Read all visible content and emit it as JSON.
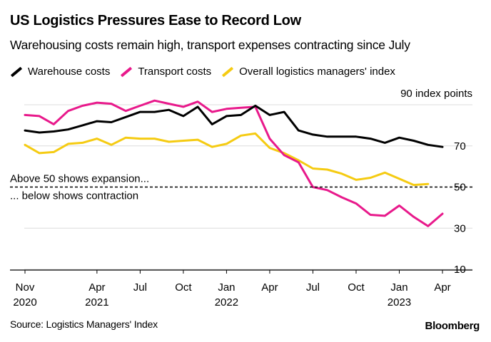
{
  "chart_data": {
    "type": "line",
    "title": "US Logistics Pressures Ease to Record Low",
    "subtitle": "Warehousing costs remain high, transport expenses contracting since July",
    "ylabel": "90 index points",
    "ylim": [
      10,
      90
    ],
    "yticks": [
      10,
      30,
      50,
      70,
      90
    ],
    "ytick_labels": [
      "10",
      "30",
      "50",
      "70"
    ],
    "threshold": 50,
    "annotations": {
      "above": "Above 50 shows expansion...",
      "below": "... below shows contraction"
    },
    "x_month_index": [
      0,
      1,
      2,
      3,
      4,
      5,
      6,
      7,
      8,
      9,
      10,
      11,
      12,
      13,
      14,
      15,
      16,
      17,
      18,
      19,
      20,
      21,
      22,
      23,
      24,
      25,
      26,
      27,
      28,
      29
    ],
    "xticks": [
      {
        "i": 0,
        "month": "Nov",
        "year": "2020"
      },
      {
        "i": 5,
        "month": "Apr",
        "year": "2021"
      },
      {
        "i": 8,
        "month": "Jul",
        "year": ""
      },
      {
        "i": 11,
        "month": "Oct",
        "year": ""
      },
      {
        "i": 14,
        "month": "Jan",
        "year": "2022"
      },
      {
        "i": 17,
        "month": "Apr",
        "year": ""
      },
      {
        "i": 20,
        "month": "Jul",
        "year": ""
      },
      {
        "i": 23,
        "month": "Oct",
        "year": ""
      },
      {
        "i": 26,
        "month": "Jan",
        "year": "2023"
      },
      {
        "i": 29,
        "month": "Apr",
        "year": ""
      }
    ],
    "series": [
      {
        "name": "Warehouse costs",
        "color": "#000000",
        "values": [
          77.5,
          76.5,
          77.0,
          78.0,
          80.0,
          82.0,
          81.5,
          84.0,
          86.5,
          86.5,
          87.5,
          84.5,
          89.0,
          80.5,
          84.5,
          85.0,
          89.5,
          85.0,
          86.5,
          77.5,
          75.5,
          74.5,
          74.5,
          74.5,
          73.5,
          71.5,
          74.0,
          72.5,
          70.5,
          69.5
        ]
      },
      {
        "name": "Transport costs",
        "color": "#E8198B",
        "values": [
          85.0,
          84.5,
          80.5,
          87.0,
          89.5,
          91.0,
          90.5,
          87.0,
          89.5,
          92.0,
          90.5,
          89.0,
          91.5,
          86.5,
          88.0,
          88.5,
          89.0,
          73.5,
          65.5,
          62.0,
          50.0,
          48.5,
          45.0,
          42.0,
          36.5,
          36.0,
          41.0,
          35.5,
          31.0,
          37.0
        ]
      },
      {
        "name": "Overall logistics managers' index",
        "color": "#F5CB12",
        "values": [
          70.5,
          66.5,
          67.0,
          71.0,
          71.5,
          73.5,
          70.5,
          74.0,
          73.5,
          73.5,
          72.0,
          72.5,
          73.0,
          69.5,
          71.0,
          75.0,
          76.0,
          69.0,
          66.5,
          63.0,
          59.0,
          58.5,
          56.5,
          53.5,
          54.5,
          57.0,
          54.0,
          51.0,
          51.5,
          null
        ]
      }
    ],
    "source": "Source: Logistics Managers' Index",
    "brand": "Bloomberg"
  }
}
